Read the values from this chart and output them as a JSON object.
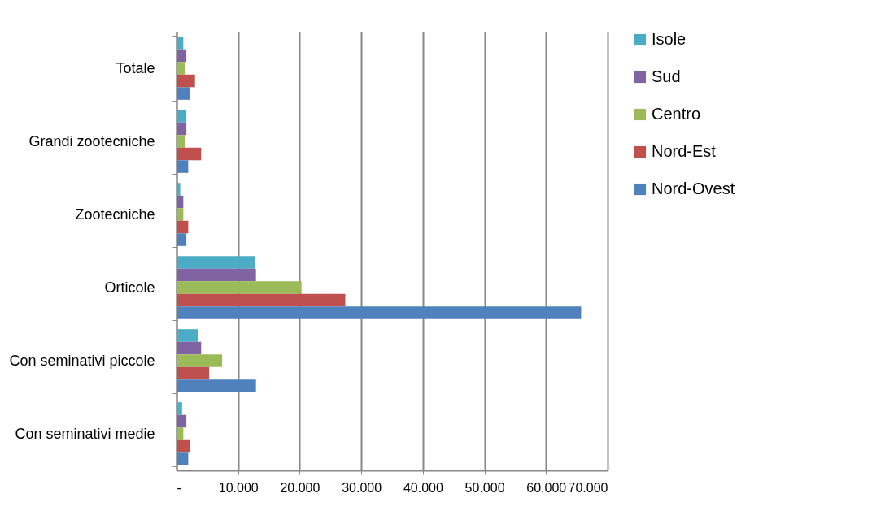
{
  "chart_data": {
    "type": "bar",
    "orientation": "horizontal",
    "categories": [
      "Totale",
      "Grandi zootecniche",
      "Zootecniche",
      "Orticole",
      "Con seminativi piccole",
      "Con seminativi medie"
    ],
    "series": [
      {
        "name": "Isole",
        "color": "#4bacc6",
        "values": [
          1100,
          1600,
          600,
          12700,
          3500,
          900
        ]
      },
      {
        "name": "Sud",
        "color": "#8064a2",
        "values": [
          1600,
          1600,
          1100,
          12900,
          4000,
          1600
        ]
      },
      {
        "name": "Centro",
        "color": "#9bbb59",
        "values": [
          1400,
          1400,
          1100,
          20300,
          7400,
          1100
        ]
      },
      {
        "name": "Nord-Est",
        "color": "#c0504d",
        "values": [
          3000,
          4000,
          1900,
          27400,
          5300,
          2200
        ]
      },
      {
        "name": "Nord-Ovest",
        "color": "#4f81bd",
        "values": [
          2200,
          1900,
          1600,
          65700,
          12900,
          1900
        ]
      }
    ],
    "xlim": [
      0,
      70000
    ],
    "xticks": [
      {
        "value": 0,
        "label": "-"
      },
      {
        "value": 10000,
        "label": "10.000"
      },
      {
        "value": 20000,
        "label": "20.000"
      },
      {
        "value": 30000,
        "label": "30.000"
      },
      {
        "value": 40000,
        "label": "40.000"
      },
      {
        "value": 50000,
        "label": "50.000"
      },
      {
        "value": 60000,
        "label": "60.000"
      },
      {
        "value": 70000,
        "label": "70.000"
      }
    ],
    "grid": "x",
    "legend": "right"
  }
}
